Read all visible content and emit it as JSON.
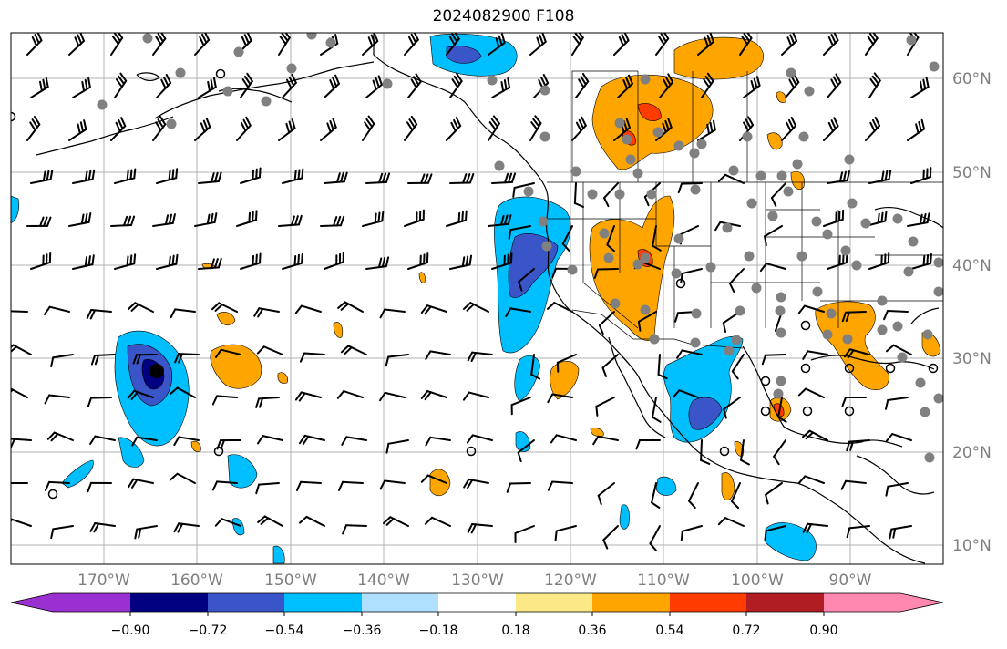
{
  "title": "2024082900 F108",
  "map": {
    "projection": "PlateCarree",
    "lon_range": [
      -180,
      -80
    ],
    "lat_range": [
      8,
      65
    ],
    "lat_ticks": [
      "10°N",
      "20°N",
      "30°N",
      "40°N",
      "50°N",
      "60°N"
    ],
    "lon_ticks": [
      "170°W",
      "160°W",
      "150°W",
      "140°W",
      "130°W",
      "120°W",
      "110°W",
      "100°W",
      "90°W"
    ],
    "grid": true,
    "overlays": [
      "coastlines",
      "country borders",
      "US state borders",
      "wind barbs",
      "station markers"
    ]
  },
  "colorbar": {
    "ticks": [
      "−0.90",
      "−0.72",
      "−0.54",
      "−0.36",
      "−0.18",
      "0.18",
      "0.36",
      "0.54",
      "0.72",
      "0.90"
    ],
    "colors": [
      "#9b30d0",
      "#000080",
      "#3a55c8",
      "#00bfff",
      "#afe0ff",
      "#ffffff",
      "#fbe987",
      "#ffa500",
      "#ff3c00",
      "#b01e23",
      "#ff88b0"
    ],
    "extend": "both"
  },
  "colors": {
    "grid": "#b0b0b0",
    "station_gray": "#808080",
    "neg_light": "#00bfff",
    "neg_mid": "#3a55c8",
    "pos_light": "#ffa500",
    "pos_mid": "#ff3c00"
  }
}
